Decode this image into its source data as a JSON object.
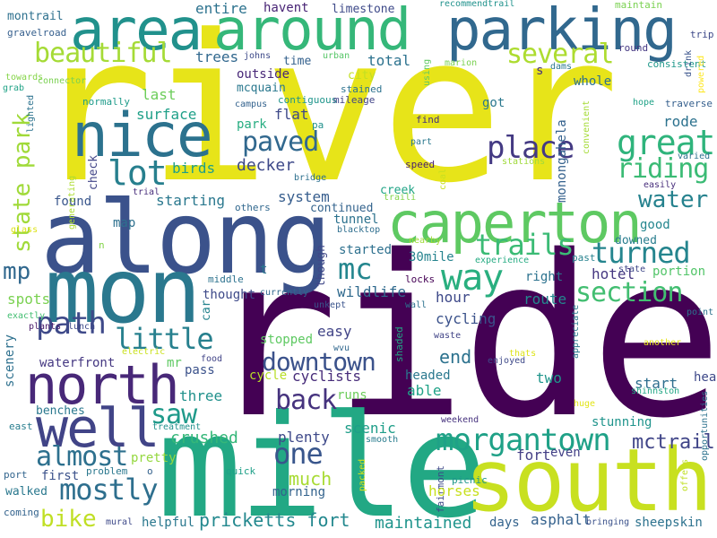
{
  "background_color": "#ffffff",
  "palette": {
    "viridis_dark_purple": "#440154",
    "viridis_indigo": "#3b528b",
    "viridis_blue": "#31688e",
    "viridis_teal": "#21918c",
    "viridis_green": "#35b779",
    "viridis_lime": "#90d743",
    "viridis_yellow": "#fde725"
  },
  "words": [
    {
      "text": "river",
      "color": "#e7e419"
    },
    {
      "text": "ride",
      "color": "#440154"
    },
    {
      "text": "mile",
      "color": "#22a884"
    },
    {
      "text": "along",
      "color": "#3b528b"
    },
    {
      "text": "mon",
      "color": "#2a788e"
    },
    {
      "text": "south",
      "color": "#c8e020"
    },
    {
      "text": "parking",
      "color": "#31688e"
    },
    {
      "text": "around",
      "color": "#35b779"
    },
    {
      "text": "area",
      "color": "#21918c"
    },
    {
      "text": "nice",
      "color": "#2c728e"
    },
    {
      "text": "caperton",
      "color": "#5ec962"
    },
    {
      "text": "north",
      "color": "#482878"
    },
    {
      "text": "well",
      "color": "#414487"
    },
    {
      "text": "great",
      "color": "#2fb47c"
    },
    {
      "text": "beautiful",
      "color": "#a5db36"
    },
    {
      "text": "several",
      "color": "#addc30"
    },
    {
      "text": "lot",
      "color": "#277f8e"
    },
    {
      "text": "place",
      "color": "#443a83"
    },
    {
      "text": "riding",
      "color": "#3bbb75"
    },
    {
      "text": "state park",
      "color": "#a0da39"
    },
    {
      "text": "paved",
      "color": "#31688e"
    },
    {
      "text": "water",
      "color": "#26828e"
    },
    {
      "text": "trails",
      "color": "#3bbb75"
    },
    {
      "text": "turned",
      "color": "#25858e"
    },
    {
      "text": "way",
      "color": "#29af7f"
    },
    {
      "text": "mc",
      "color": "#24868e"
    },
    {
      "text": "section",
      "color": "#42be71"
    },
    {
      "text": "mp",
      "color": "#31688e"
    },
    {
      "text": "path",
      "color": "#3e4989"
    },
    {
      "text": "little",
      "color": "#27808e"
    },
    {
      "text": "downtown",
      "color": "#3b528b"
    },
    {
      "text": "back",
      "color": "#46337e"
    },
    {
      "text": "saw",
      "color": "#1f9a8a"
    },
    {
      "text": "morgantown",
      "color": "#1fa187"
    },
    {
      "text": "one",
      "color": "#39568c"
    },
    {
      "text": "almost",
      "color": "#2d708e"
    },
    {
      "text": "mostly",
      "color": "#2e6f8e"
    },
    {
      "text": "bike",
      "color": "#c0df25"
    },
    {
      "text": "pricketts fort",
      "color": "#23888e"
    },
    {
      "text": "much",
      "color": "#a8db34"
    },
    {
      "text": "crushed",
      "color": "#35b779"
    },
    {
      "text": "plenty",
      "color": "#3e4989"
    },
    {
      "text": "maintained",
      "color": "#1f948c"
    },
    {
      "text": "mctrail",
      "color": "#404588"
    },
    {
      "text": "fort",
      "color": "#433e85"
    },
    {
      "text": "entire",
      "color": "#2c728e"
    },
    {
      "text": "havent",
      "color": "#482475"
    },
    {
      "text": "limestone",
      "color": "#3e4a89"
    },
    {
      "text": "recommendtrail",
      "color": "#20928c"
    },
    {
      "text": "maintain",
      "color": "#7ad151"
    },
    {
      "text": "montrail",
      "color": "#2d708e"
    },
    {
      "text": "gravelroad",
      "color": "#355f8d"
    },
    {
      "text": "trip",
      "color": "#3e4989"
    },
    {
      "text": "glass",
      "color": "#dde318"
    },
    {
      "text": "round",
      "color": "#453882"
    },
    {
      "text": "trees",
      "color": "#31688e"
    },
    {
      "text": "johns",
      "color": "#3e4a89"
    },
    {
      "text": "time",
      "color": "#34618d"
    },
    {
      "text": "urban",
      "color": "#55c667"
    },
    {
      "text": "total",
      "color": "#2c728e"
    },
    {
      "text": "marion",
      "color": "#7ad151"
    },
    {
      "text": "dams",
      "color": "#2a788e"
    },
    {
      "text": "consistent",
      "color": "#1f988b"
    },
    {
      "text": "drink",
      "color": "#3a548c"
    },
    {
      "text": "powered",
      "color": "#fde725"
    },
    {
      "text": "towards",
      "color": "#86d549"
    },
    {
      "text": "connector",
      "color": "#7ad151"
    },
    {
      "text": "grab",
      "color": "#20a386"
    },
    {
      "text": "outside",
      "color": "#482878"
    },
    {
      "text": "city",
      "color": "#c2df23"
    },
    {
      "text": "using",
      "color": "#5ec962"
    },
    {
      "text": "whole",
      "color": "#2d708e"
    },
    {
      "text": "s",
      "color": "#46317e"
    },
    {
      "text": "mcquain",
      "color": "#2a788e"
    },
    {
      "text": "contiguous",
      "color": "#1f958b"
    },
    {
      "text": "stained",
      "color": "#2c728e"
    },
    {
      "text": "campus",
      "color": "#33628d"
    },
    {
      "text": "normally",
      "color": "#1e9b8a"
    },
    {
      "text": "last",
      "color": "#6ccd5a"
    },
    {
      "text": "mileage",
      "color": "#414487"
    },
    {
      "text": "got",
      "color": "#2a788e"
    },
    {
      "text": "hope",
      "color": "#1fa287"
    },
    {
      "text": "traverse",
      "color": "#355f8d"
    },
    {
      "text": "lighted",
      "color": "#2c728e"
    },
    {
      "text": "surface",
      "color": "#1fa088"
    },
    {
      "text": "flat",
      "color": "#3e4989"
    },
    {
      "text": "pa",
      "color": "#21918c"
    },
    {
      "text": "find",
      "color": "#46337e"
    },
    {
      "text": "rode",
      "color": "#2c728e"
    },
    {
      "text": "convenient",
      "color": "#a5db36"
    },
    {
      "text": "park",
      "color": "#27ad81"
    },
    {
      "text": "part",
      "color": "#2a788e"
    },
    {
      "text": "monongahela",
      "color": "#34618d"
    },
    {
      "text": "check",
      "color": "#414487"
    },
    {
      "text": "birds",
      "color": "#1f9e89"
    },
    {
      "text": "decker",
      "color": "#3e4989"
    },
    {
      "text": "speed",
      "color": "#481f70"
    },
    {
      "text": "stations",
      "color": "#9fda3a"
    },
    {
      "text": "varied",
      "color": "#2c728e"
    },
    {
      "text": "bridge",
      "color": "#2d708e"
    },
    {
      "text": "coal",
      "color": "#c8e020"
    },
    {
      "text": "easily",
      "color": "#472d7b"
    },
    {
      "text": "trial",
      "color": "#472d7b"
    },
    {
      "text": "system",
      "color": "#365d8d"
    },
    {
      "text": "creek",
      "color": "#20a486"
    },
    {
      "text": "traili",
      "color": "#84d44b"
    },
    {
      "text": "generating",
      "color": "#addc30"
    },
    {
      "text": "starting",
      "color": "#2a788e"
    },
    {
      "text": "others",
      "color": "#31688e"
    },
    {
      "text": "continued",
      "color": "#33638d"
    },
    {
      "text": "found",
      "color": "#39568c"
    },
    {
      "text": "map",
      "color": "#2d708e"
    },
    {
      "text": "tunnel",
      "color": "#2c728e"
    },
    {
      "text": "blacktop",
      "color": "#2e6e8e"
    },
    {
      "text": "good",
      "color": "#24868e"
    },
    {
      "text": "glass2",
      "color": "#27ad81"
    },
    {
      "text": "though",
      "color": "#3f4788"
    },
    {
      "text": "30mile",
      "color": "#25838e"
    },
    {
      "text": "nearby",
      "color": "#a0da39"
    },
    {
      "text": "downed",
      "color": "#287d8e"
    },
    {
      "text": "n",
      "color": "#84d44b"
    },
    {
      "text": "started",
      "color": "#2d708e"
    },
    {
      "text": "past",
      "color": "#26828e"
    },
    {
      "text": "hotel",
      "color": "#453781"
    },
    {
      "text": "portion",
      "color": "#52c569"
    },
    {
      "text": "experience",
      "color": "#25ab82"
    },
    {
      "text": "right",
      "color": "#2c728e"
    },
    {
      "text": "state",
      "color": "#3f4788"
    },
    {
      "text": "t",
      "color": "#2a788e"
    },
    {
      "text": "middle",
      "color": "#2c728e"
    },
    {
      "text": "spots",
      "color": "#7ad151"
    },
    {
      "text": "locks",
      "color": "#440154"
    },
    {
      "text": "wildlife",
      "color": "#306a8e"
    },
    {
      "text": "hour",
      "color": "#3e4989"
    },
    {
      "text": "route",
      "color": "#24878e"
    },
    {
      "text": "currently",
      "color": "#31688e"
    },
    {
      "text": "exactly",
      "color": "#42be71"
    },
    {
      "text": "thought",
      "color": "#3e4a89"
    },
    {
      "text": "car",
      "color": "#25848e"
    },
    {
      "text": "unkept",
      "color": "#3a548c"
    },
    {
      "text": "wall",
      "color": "#2c728e"
    },
    {
      "text": "appreciate",
      "color": "#2a788e"
    },
    {
      "text": "point",
      "color": "#2c728e"
    },
    {
      "text": "plants",
      "color": "#48186a"
    },
    {
      "text": "lunch",
      "color": "#3e4989"
    },
    {
      "text": "scenery",
      "color": "#2d708e"
    },
    {
      "text": "easy",
      "color": "#414487"
    },
    {
      "text": "stopped",
      "color": "#5ec962"
    },
    {
      "text": "cycling",
      "color": "#3b528b"
    },
    {
      "text": "shaded",
      "color": "#22a884"
    },
    {
      "text": "waste",
      "color": "#414487"
    },
    {
      "text": "another",
      "color": "#e5e419"
    },
    {
      "text": "wvu",
      "color": "#31688e"
    },
    {
      "text": "waterfront",
      "color": "#453882"
    },
    {
      "text": "electric",
      "color": "#cae11f"
    },
    {
      "text": "mr",
      "color": "#5ec962"
    },
    {
      "text": "end",
      "color": "#2c728e"
    },
    {
      "text": "thats",
      "color": "#dde318"
    },
    {
      "text": "pass",
      "color": "#3b528b"
    },
    {
      "text": "food",
      "color": "#414487"
    },
    {
      "text": "cycle",
      "color": "#b8de29"
    },
    {
      "text": "cyclists",
      "color": "#472c7a"
    },
    {
      "text": "headed",
      "color": "#2a788e"
    },
    {
      "text": "enjoyed",
      "color": "#3e4989"
    },
    {
      "text": "start",
      "color": "#2e6e8e"
    },
    {
      "text": "head",
      "color": "#3e4989"
    },
    {
      "text": "benches",
      "color": "#2a788e"
    },
    {
      "text": "three",
      "color": "#21918c"
    },
    {
      "text": "runs",
      "color": "#6ccd5a"
    },
    {
      "text": "able",
      "color": "#1fa287"
    },
    {
      "text": "two",
      "color": "#1f958b"
    },
    {
      "text": "shinnston",
      "color": "#22a785"
    },
    {
      "text": "treatment",
      "color": "#21918c"
    },
    {
      "text": "huge",
      "color": "#e2e418"
    },
    {
      "text": "opportunities",
      "color": "#2c728e"
    },
    {
      "text": "east",
      "color": "#287d8e"
    },
    {
      "text": "scenic",
      "color": "#1f9e89"
    },
    {
      "text": "smooth",
      "color": "#287c8e"
    },
    {
      "text": "weekend",
      "color": "#46327e"
    },
    {
      "text": "stunning",
      "color": "#1f948c"
    },
    {
      "text": "even",
      "color": "#424086"
    },
    {
      "text": "pretty",
      "color": "#95d840"
    },
    {
      "text": "first",
      "color": "#3b528b"
    },
    {
      "text": "port",
      "color": "#32658e"
    },
    {
      "text": "problem",
      "color": "#2a788e"
    },
    {
      "text": "o",
      "color": "#34618d"
    },
    {
      "text": "quick",
      "color": "#1fa088"
    },
    {
      "text": "packed",
      "color": "#d5e21a"
    },
    {
      "text": "fairmont",
      "color": "#3e4989"
    },
    {
      "text": "picnic",
      "color": "#1f978b"
    },
    {
      "text": "offers",
      "color": "#c0df25"
    },
    {
      "text": "walked",
      "color": "#2a788e"
    },
    {
      "text": "morning",
      "color": "#33638d"
    },
    {
      "text": "horses",
      "color": "#c8e020"
    },
    {
      "text": "coming",
      "color": "#33638d"
    },
    {
      "text": "mural",
      "color": "#3e4989"
    },
    {
      "text": "helpful",
      "color": "#2a788e"
    },
    {
      "text": "days",
      "color": "#33638d"
    },
    {
      "text": "asphalt",
      "color": "#34618d"
    },
    {
      "text": "bringing",
      "color": "#3b528b"
    },
    {
      "text": "sheepskin",
      "color": "#2c728e"
    }
  ]
}
